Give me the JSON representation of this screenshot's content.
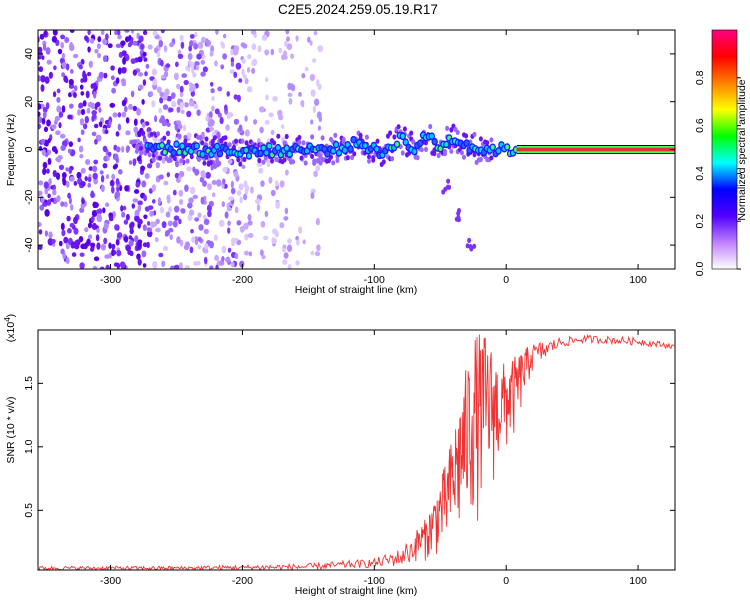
{
  "figure_title": "C2E5.2024.259.05.19.R17",
  "colors": {
    "snr_line": "#f03232",
    "track_outline": "#2a5cff",
    "track_core": "#e8303a",
    "scatter_dense": "#5a00e6",
    "scatter_faint": "#c9a8ff"
  },
  "chart_data": [
    {
      "type": "heatmap",
      "xlabel": "Height of straight line (km)",
      "ylabel": "Frequency (Hz)",
      "xlim": [
        -355,
        128
      ],
      "ylim": [
        -50,
        50
      ],
      "xticks": [
        -300,
        -200,
        -100,
        0,
        100
      ],
      "yticks": [
        -40,
        -20,
        0,
        20,
        40
      ],
      "xtick_labels": [
        "-300",
        "-200",
        "-100",
        "0",
        "100"
      ],
      "ytick_labels": [
        "-40",
        "-20",
        "0",
        "20",
        "40"
      ],
      "colorbar": {
        "label": "Normalized spectral amplitude",
        "range": [
          0,
          1
        ],
        "ticks": [
          "0.0",
          "0.2",
          "0.4",
          "0.6",
          "0.8"
        ],
        "tick_values": [
          0,
          0.2,
          0.4,
          0.6,
          0.8
        ],
        "colormap": [
          "#ffffff",
          "#c080ff",
          "#5000ff",
          "#0000ff",
          "#00ffff",
          "#00ff00",
          "#ffff00",
          "#ff8000",
          "#ff0000",
          "#ff0080"
        ]
      },
      "signal_track": [
        {
          "x": -270,
          "y": 1
        },
        {
          "x": -240,
          "y": 0
        },
        {
          "x": -200,
          "y": -1
        },
        {
          "x": -160,
          "y": 0
        },
        {
          "x": -130,
          "y": 0
        },
        {
          "x": -110,
          "y": 3
        },
        {
          "x": -95,
          "y": -2
        },
        {
          "x": -80,
          "y": 5
        },
        {
          "x": -70,
          "y": 0
        },
        {
          "x": -60,
          "y": 6
        },
        {
          "x": -50,
          "y": 1
        },
        {
          "x": -40,
          "y": 5
        },
        {
          "x": -30,
          "y": 2
        },
        {
          "x": -20,
          "y": 0
        },
        {
          "x": 0,
          "y": 0
        },
        {
          "x": 10,
          "y": 0
        },
        {
          "x": 128,
          "y": 0
        }
      ],
      "faint_branch": [
        {
          "x": -45,
          "y": -15
        },
        {
          "x": -35,
          "y": -28
        },
        {
          "x": -27,
          "y": -40
        }
      ],
      "scatter_regions": [
        {
          "x_from": -355,
          "x_to": -270,
          "density": "high"
        },
        {
          "x_from": -270,
          "x_to": -200,
          "density": "medium"
        },
        {
          "x_from": -200,
          "x_to": -140,
          "density": "low"
        }
      ]
    },
    {
      "type": "line",
      "xlabel": "Height of straight line (km)",
      "ylabel": "SNR (10 * v/v)",
      "y_multiplier": "(x10",
      "y_multiplier_exp": "4",
      "y_multiplier_close": ")",
      "xlim": [
        -355,
        128
      ],
      "ylim": [
        0.03,
        1.92
      ],
      "xticks": [
        -300,
        -200,
        -100,
        0,
        100
      ],
      "yticks": [
        0.5,
        1.0,
        1.5
      ],
      "xtick_labels": [
        "-300",
        "-200",
        "-100",
        "0",
        "100"
      ],
      "ytick_labels": [
        "0.5",
        "1.0",
        "1.5"
      ],
      "series": [
        {
          "color": "#f03232",
          "envelope": [
            {
              "x": -355,
              "lo": 0.03,
              "hi": 0.06
            },
            {
              "x": -250,
              "lo": 0.03,
              "hi": 0.06
            },
            {
              "x": -150,
              "lo": 0.03,
              "hi": 0.08
            },
            {
              "x": -100,
              "lo": 0.05,
              "hi": 0.12
            },
            {
              "x": -80,
              "lo": 0.06,
              "hi": 0.2
            },
            {
              "x": -60,
              "lo": 0.1,
              "hi": 0.45
            },
            {
              "x": -45,
              "lo": 0.15,
              "hi": 0.9
            },
            {
              "x": -35,
              "lo": 0.2,
              "hi": 1.4
            },
            {
              "x": -25,
              "lo": 0.35,
              "hi": 1.9
            },
            {
              "x": -15,
              "lo": 0.5,
              "hi": 1.9
            },
            {
              "x": -5,
              "lo": 0.8,
              "hi": 1.65
            },
            {
              "x": 5,
              "lo": 1.0,
              "hi": 1.7
            },
            {
              "x": 20,
              "lo": 1.6,
              "hi": 1.82
            },
            {
              "x": 40,
              "lo": 1.78,
              "hi": 1.86
            },
            {
              "x": 60,
              "lo": 1.82,
              "hi": 1.88
            },
            {
              "x": 100,
              "lo": 1.8,
              "hi": 1.86
            },
            {
              "x": 128,
              "lo": 1.77,
              "hi": 1.81
            }
          ]
        }
      ]
    }
  ]
}
